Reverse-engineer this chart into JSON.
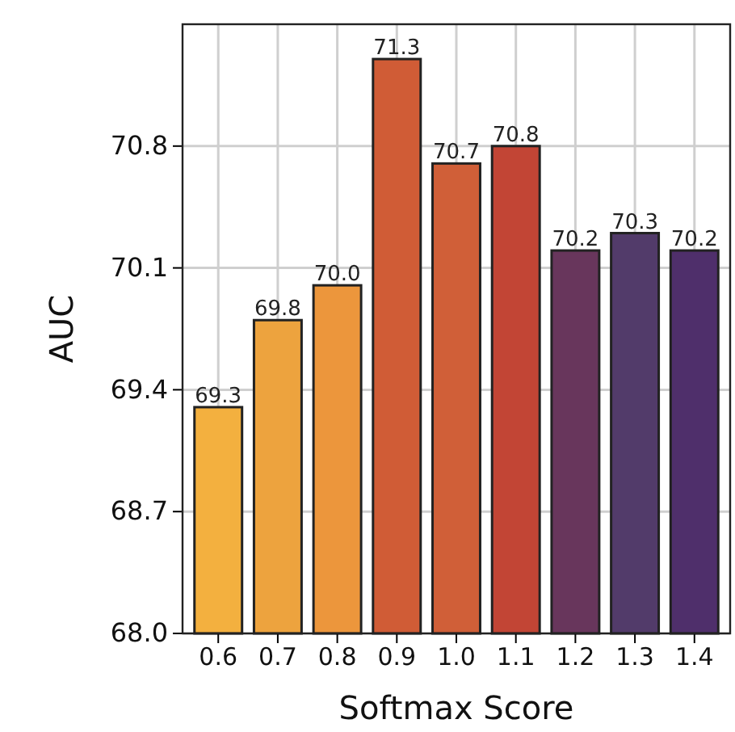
{
  "chart_data": {
    "type": "bar",
    "xlabel": "Softmax Score",
    "ylabel": "AUC",
    "categories": [
      "0.6",
      "0.7",
      "0.8",
      "0.9",
      "1.0",
      "1.1",
      "1.2",
      "1.3",
      "1.4"
    ],
    "values": [
      69.3,
      69.8,
      70.0,
      71.3,
      70.7,
      70.8,
      70.2,
      70.3,
      70.2
    ],
    "value_labels": [
      "69.3",
      "69.8",
      "70.0",
      "71.3",
      "70.7",
      "70.8",
      "70.2",
      "70.3",
      "70.2"
    ],
    "colors": [
      "#f3b03f",
      "#eda33e",
      "#ec963c",
      "#d05c36",
      "#d05f38",
      "#c24535",
      "#68365c",
      "#523b6a",
      "#4f2f6b"
    ],
    "ylim": [
      68.0,
      71.5
    ],
    "yticks": [
      {
        "value": 68.0,
        "label": "68.0"
      },
      {
        "value": 68.7,
        "label": "68.7"
      },
      {
        "value": 69.4,
        "label": "69.4"
      },
      {
        "value": 70.1,
        "label": "70.1"
      },
      {
        "value": 70.8,
        "label": "70.8"
      }
    ],
    "grid": true
  }
}
